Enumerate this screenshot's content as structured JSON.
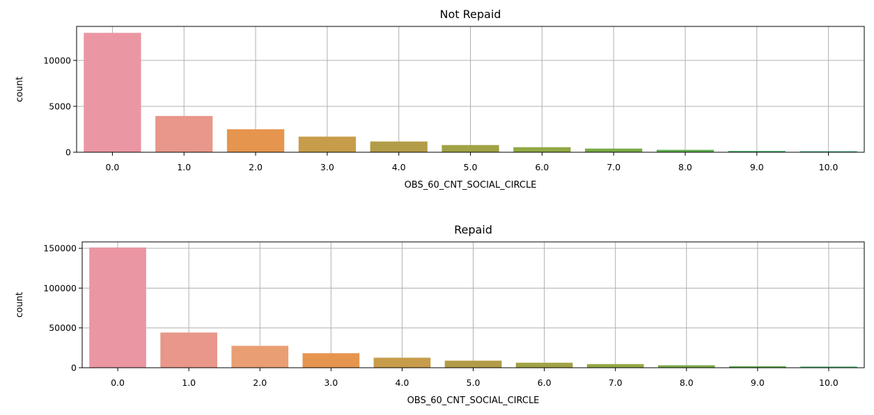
{
  "chart_data": [
    {
      "type": "bar",
      "title": "Not Repaid",
      "xlabel": "OBS_60_CNT_SOCIAL_CIRCLE",
      "ylabel": "count",
      "categories": [
        "0.0",
        "1.0",
        "2.0",
        "3.0",
        "4.0",
        "5.0",
        "6.0",
        "7.0",
        "8.0",
        "9.0",
        "10.0"
      ],
      "values": [
        13000,
        3950,
        2500,
        1700,
        1170,
        780,
        550,
        400,
        260,
        140,
        110
      ],
      "ylim": [
        0,
        13700
      ],
      "yticks": [
        0,
        5000,
        10000
      ],
      "ytick_labels": [
        "0",
        "5000",
        "10000"
      ],
      "grid": true,
      "colors": [
        "#ea96a3",
        "#e8978a",
        "#e6954f",
        "#c79c4a",
        "#b29c47",
        "#a1a245",
        "#91a946",
        "#7aab48",
        "#5eae4d",
        "#46ae6b",
        "#3fad8c"
      ]
    },
    {
      "type": "bar",
      "title": "Repaid",
      "xlabel": "OBS_60_CNT_SOCIAL_CIRCLE",
      "ylabel": "count",
      "categories": [
        "0.0",
        "1.0",
        "2.0",
        "3.0",
        "4.0",
        "5.0",
        "6.0",
        "7.0",
        "8.0",
        "9.0",
        "10.0"
      ],
      "values": [
        151000,
        44200,
        27500,
        18200,
        12600,
        8900,
        6300,
        4600,
        3100,
        1900,
        1400
      ],
      "ylim": [
        0,
        158000
      ],
      "yticks": [
        0,
        50000,
        100000,
        150000
      ],
      "ytick_labels": [
        "0",
        "50000",
        "100000",
        "150000"
      ],
      "grid": true,
      "colors": [
        "#ea96a3",
        "#e8978a",
        "#e99f73",
        "#e6954f",
        "#c79c4a",
        "#b29c47",
        "#a1a245",
        "#91a946",
        "#7aab48",
        "#5eae4d",
        "#46ae6b"
      ]
    }
  ]
}
